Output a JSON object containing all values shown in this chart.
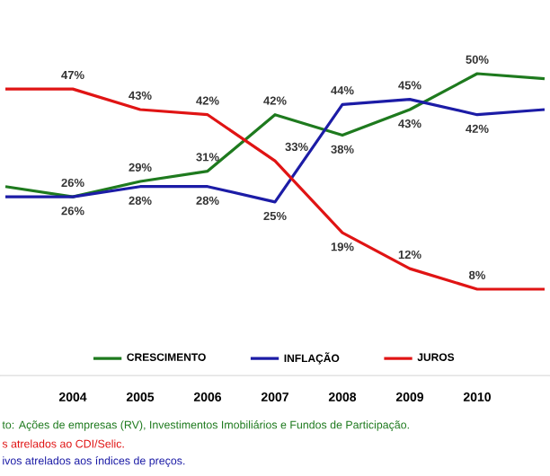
{
  "chart_data": {
    "type": "line",
    "categories": [
      null,
      "2004",
      "2005",
      "2006",
      "2007",
      "2008",
      "2009",
      "2010",
      null
    ],
    "series": [
      {
        "name": "CRESCIMENTO",
        "color": "#1e7a1e",
        "values": [
          28,
          26,
          29,
          31,
          42,
          38,
          43,
          50,
          49
        ],
        "value_labels": [
          null,
          "26%",
          "29%",
          "31%",
          "42%",
          "38%",
          "43%",
          "50%",
          null
        ]
      },
      {
        "name": "INFLAÇÃO",
        "color": "#1c1ca6",
        "values": [
          26,
          26,
          28,
          28,
          25,
          44,
          45,
          42,
          43
        ],
        "value_labels": [
          null,
          "26%",
          "28%",
          "28%",
          "25%",
          "44%",
          "45%",
          "42%",
          null
        ]
      },
      {
        "name": "JUROS",
        "color": "#e01414",
        "values": [
          47,
          47,
          43,
          42,
          33,
          19,
          12,
          8,
          8
        ],
        "value_labels": [
          null,
          "47%",
          "43%",
          "42%",
          "33%",
          "19%",
          "12%",
          "8%",
          null
        ]
      }
    ],
    "legend": "bottom",
    "marker": "none",
    "line_style": "solid",
    "annotations": [
      "to: Ações de empresas (RV), Investimentos Imobiliários e Fundos de Participação.",
      "s atrelados ao CDI/Selic.",
      "ivos atrelados aos índices de preços."
    ]
  }
}
